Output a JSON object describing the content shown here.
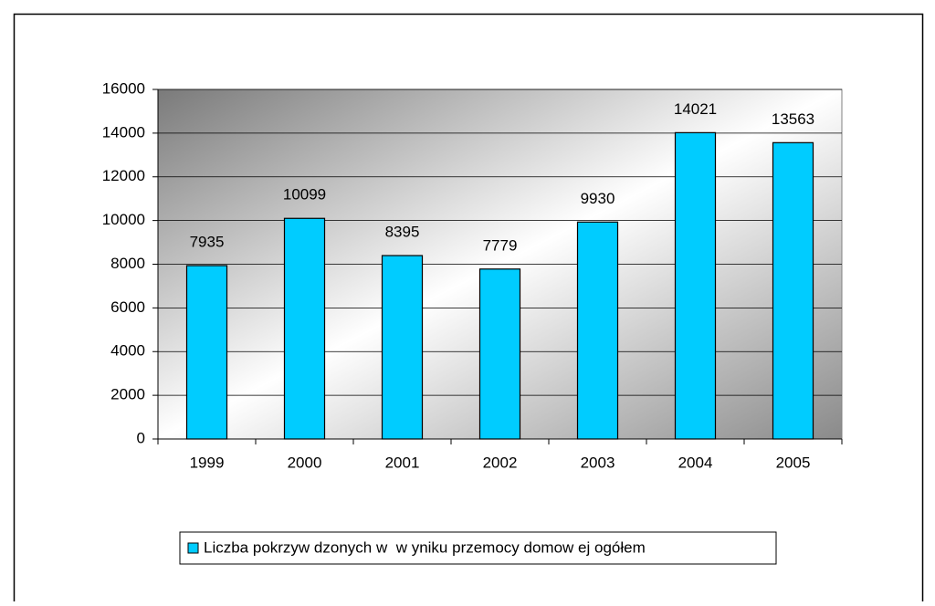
{
  "chart_data": {
    "type": "bar",
    "categories": [
      "1999",
      "2000",
      "2001",
      "2002",
      "2003",
      "2004",
      "2005"
    ],
    "series": [
      {
        "name": "Liczba pokrzyw dzonych w  w yniku przemocy domow ej ogółem",
        "color": "#00ccff",
        "values": [
          7935,
          10099,
          8395,
          7779,
          9930,
          14021,
          13563
        ]
      }
    ],
    "ylim": [
      0,
      16000
    ],
    "yticks": [
      0,
      2000,
      4000,
      6000,
      8000,
      10000,
      12000,
      14000,
      16000
    ],
    "grid": true,
    "legend": "bottom",
    "data_labels": true
  }
}
